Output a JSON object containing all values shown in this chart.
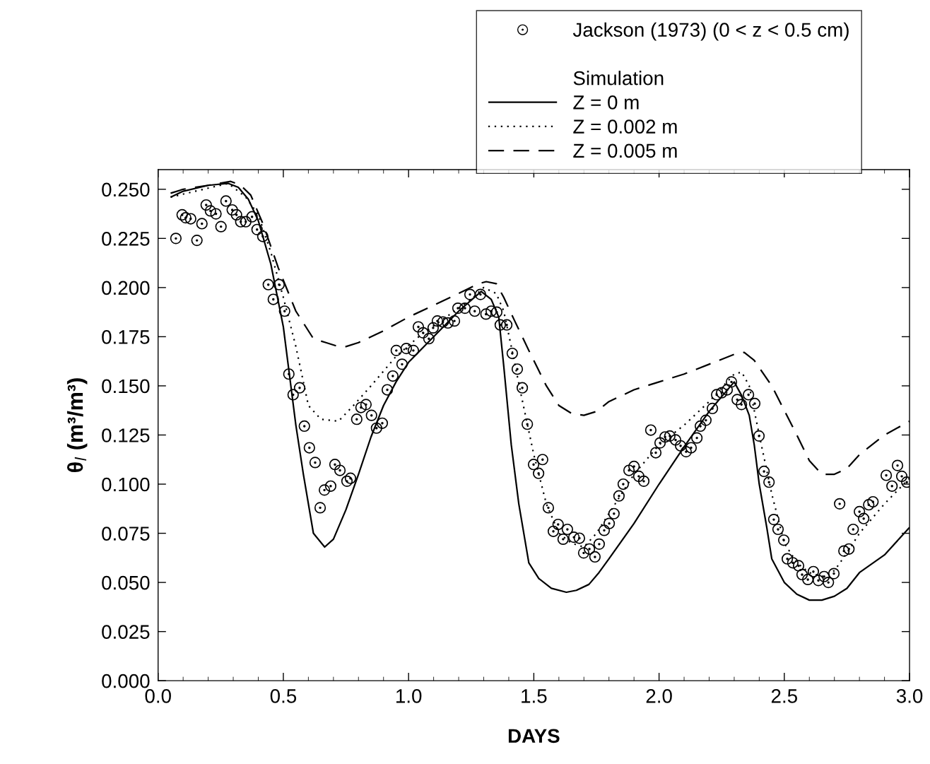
{
  "chart_data": {
    "type": "line",
    "xlabel": "DAYS",
    "ylabel": "θ$_{l}$ (m³/m³)",
    "legend_title": "Simulation",
    "legend": "top right",
    "grid": false,
    "xlim": [
      0,
      3.0
    ],
    "xticks": [
      {
        "value": 0,
        "label": "0.0"
      },
      {
        "value": 0.5,
        "label": "0.5"
      },
      {
        "value": 1.0,
        "label": "1.0"
      },
      {
        "value": 1.5,
        "label": "1.5"
      },
      {
        "value": 2.0,
        "label": "2.0"
      },
      {
        "value": 2.5,
        "label": "2.5"
      },
      {
        "value": 3.0,
        "label": "3.0"
      }
    ],
    "ylim": [
      0,
      0.26
    ],
    "yticks": [
      {
        "value": 0,
        "label": "0.000"
      },
      {
        "value": 0.025,
        "label": "0.025"
      },
      {
        "value": 0.05,
        "label": "0.050"
      },
      {
        "value": 0.075,
        "label": "0.075"
      },
      {
        "value": 0.1,
        "label": "0.100"
      },
      {
        "value": 0.125,
        "label": "0.125"
      },
      {
        "value": 0.15,
        "label": "0.150"
      },
      {
        "value": 0.175,
        "label": "0.175"
      },
      {
        "value": 0.2,
        "label": "0.200"
      },
      {
        "value": 0.225,
        "label": "0.225"
      },
      {
        "value": 0.25,
        "label": "0.250"
      }
    ],
    "series": [
      {
        "name": "Jackson (1973) (0 < z < 0.5 cm)",
        "type": "scatter",
        "marker": "circle",
        "color": "#000000",
        "x": [
          0.071,
          0.096,
          0.11,
          0.13,
          0.155,
          0.175,
          0.192,
          0.209,
          0.231,
          0.251,
          0.271,
          0.296,
          0.313,
          0.33,
          0.35,
          0.375,
          0.395,
          0.418,
          0.44,
          0.46,
          0.483,
          0.505,
          0.522,
          0.539,
          0.565,
          0.584,
          0.604,
          0.627,
          0.647,
          0.664,
          0.689,
          0.706,
          0.726,
          0.754,
          0.768,
          0.793,
          0.81,
          0.83,
          0.852,
          0.872,
          0.895,
          0.915,
          0.937,
          0.951,
          0.974,
          0.991,
          1.019,
          1.039,
          1.058,
          1.081,
          1.098,
          1.115,
          1.137,
          1.157,
          1.183,
          1.197,
          1.225,
          1.245,
          1.264,
          1.287,
          1.309,
          1.33,
          1.352,
          1.366,
          1.392,
          1.414,
          1.434,
          1.454,
          1.474,
          1.499,
          1.519,
          1.535,
          1.558,
          1.578,
          1.597,
          1.617,
          1.634,
          1.66,
          1.682,
          1.699,
          1.722,
          1.744,
          1.761,
          1.781,
          1.801,
          1.82,
          1.84,
          1.857,
          1.88,
          1.9,
          1.919,
          1.939,
          1.967,
          1.987,
          2.004,
          2.024,
          2.043,
          2.066,
          2.086,
          2.108,
          2.128,
          2.151,
          2.165,
          2.187,
          2.213,
          2.23,
          2.25,
          2.272,
          2.289,
          2.312,
          2.329,
          2.357,
          2.382,
          2.399,
          2.419,
          2.439,
          2.458,
          2.475,
          2.498,
          2.512,
          2.534,
          2.557,
          2.571,
          2.594,
          2.616,
          2.636,
          2.659,
          2.676,
          2.698,
          2.721,
          2.738,
          2.758,
          2.775,
          2.8,
          2.817,
          2.837,
          2.854,
          2.907,
          2.93,
          2.952,
          2.969,
          2.989
        ],
        "values": [
          0.225,
          0.237,
          0.2355,
          0.235,
          0.224,
          0.2325,
          0.242,
          0.239,
          0.2375,
          0.231,
          0.244,
          0.2395,
          0.237,
          0.2335,
          0.2335,
          0.236,
          0.2295,
          0.226,
          0.2015,
          0.194,
          0.2015,
          0.188,
          0.156,
          0.1455,
          0.149,
          0.1295,
          0.1185,
          0.111,
          0.088,
          0.097,
          0.099,
          0.11,
          0.107,
          0.1015,
          0.103,
          0.133,
          0.139,
          0.1405,
          0.135,
          0.1285,
          0.131,
          0.148,
          0.155,
          0.168,
          0.161,
          0.169,
          0.168,
          0.18,
          0.177,
          0.174,
          0.1795,
          0.183,
          0.1825,
          0.182,
          0.183,
          0.1895,
          0.1895,
          0.1965,
          0.188,
          0.1965,
          0.1865,
          0.188,
          0.1875,
          0.181,
          0.181,
          0.1665,
          0.1585,
          0.149,
          0.1305,
          0.11,
          0.1055,
          0.1125,
          0.088,
          0.076,
          0.0795,
          0.072,
          0.077,
          0.073,
          0.0725,
          0.065,
          0.067,
          0.063,
          0.0695,
          0.0765,
          0.08,
          0.085,
          0.094,
          0.1,
          0.107,
          0.109,
          0.104,
          0.1015,
          0.1275,
          0.116,
          0.121,
          0.124,
          0.1245,
          0.1225,
          0.1195,
          0.1165,
          0.1185,
          0.1235,
          0.1295,
          0.1325,
          0.1385,
          0.1455,
          0.1465,
          0.148,
          0.152,
          0.143,
          0.1405,
          0.1455,
          0.141,
          0.1245,
          0.1065,
          0.101,
          0.082,
          0.077,
          0.0715,
          0.062,
          0.06,
          0.0585,
          0.054,
          0.0515,
          0.0555,
          0.051,
          0.053,
          0.05,
          0.0545,
          0.09,
          0.066,
          0.067,
          0.077,
          0.086,
          0.0825,
          0.0895,
          0.091,
          0.1045,
          0.099,
          0.1095,
          0.104,
          0.101
        ]
      },
      {
        "name": "Z = 0 m",
        "line_style": "solid",
        "color": "#000000",
        "x": [
          0.05,
          0.1,
          0.2,
          0.28,
          0.32,
          0.36,
          0.4,
          0.45,
          0.5,
          0.55,
          0.58,
          0.62,
          0.665,
          0.7,
          0.75,
          0.8,
          0.85,
          0.9,
          0.95,
          1.0,
          1.1,
          1.2,
          1.29,
          1.33,
          1.36,
          1.38,
          1.41,
          1.44,
          1.48,
          1.52,
          1.57,
          1.63,
          1.67,
          1.72,
          1.76,
          1.8,
          1.9,
          2.0,
          2.1,
          2.2,
          2.3,
          2.33,
          2.36,
          2.38,
          2.4,
          2.43,
          2.45,
          2.5,
          2.55,
          2.6,
          2.65,
          2.7,
          2.75,
          2.8,
          2.9,
          3.0
        ],
        "values": [
          0.246,
          0.249,
          0.252,
          0.253,
          0.251,
          0.245,
          0.234,
          0.212,
          0.18,
          0.13,
          0.105,
          0.075,
          0.068,
          0.072,
          0.087,
          0.105,
          0.124,
          0.14,
          0.152,
          0.162,
          0.175,
          0.188,
          0.198,
          0.194,
          0.185,
          0.16,
          0.12,
          0.09,
          0.06,
          0.052,
          0.047,
          0.045,
          0.046,
          0.049,
          0.055,
          0.062,
          0.08,
          0.1,
          0.119,
          0.137,
          0.152,
          0.145,
          0.135,
          0.12,
          0.1,
          0.078,
          0.062,
          0.05,
          0.044,
          0.041,
          0.041,
          0.043,
          0.047,
          0.055,
          0.064,
          0.078
        ]
      },
      {
        "name": "Z = 0.002 m",
        "line_style": "dotted",
        "color": "#000000",
        "x": [
          0.05,
          0.28,
          0.35,
          0.4,
          0.45,
          0.5,
          0.55,
          0.6,
          0.65,
          0.72,
          0.78,
          0.85,
          0.95,
          1.05,
          1.15,
          1.25,
          1.3,
          1.35,
          1.38,
          1.41,
          1.45,
          1.5,
          1.55,
          1.6,
          1.65,
          1.7,
          1.75,
          1.8,
          1.9,
          2.0,
          2.1,
          2.2,
          2.3,
          2.33,
          2.36,
          2.4,
          2.45,
          2.5,
          2.55,
          2.6,
          2.65,
          2.7,
          2.75,
          2.8,
          2.9,
          3.0
        ],
        "values": [
          0.246,
          0.253,
          0.246,
          0.237,
          0.218,
          0.195,
          0.17,
          0.14,
          0.133,
          0.132,
          0.14,
          0.15,
          0.165,
          0.176,
          0.185,
          0.194,
          0.2,
          0.197,
          0.188,
          0.17,
          0.145,
          0.115,
          0.09,
          0.075,
          0.07,
          0.068,
          0.075,
          0.085,
          0.105,
          0.12,
          0.13,
          0.142,
          0.156,
          0.157,
          0.15,
          0.125,
          0.095,
          0.07,
          0.06,
          0.055,
          0.053,
          0.056,
          0.065,
          0.075,
          0.09,
          0.103
        ]
      },
      {
        "name": "Z = 0.005 m",
        "line_style": "dashed",
        "color": "#000000",
        "x": [
          0.05,
          0.1,
          0.2,
          0.29,
          0.33,
          0.37,
          0.42,
          0.48,
          0.55,
          0.62,
          0.67,
          0.72,
          0.75,
          0.8,
          0.9,
          1.0,
          1.1,
          1.2,
          1.28,
          1.31,
          1.35,
          1.38,
          1.42,
          1.48,
          1.55,
          1.6,
          1.65,
          1.7,
          1.75,
          1.8,
          1.9,
          2.0,
          2.1,
          2.2,
          2.3,
          2.34,
          2.38,
          2.45,
          2.55,
          2.6,
          2.65,
          2.7,
          2.75,
          2.8,
          2.9,
          3.0
        ],
        "values": [
          0.248,
          0.25,
          0.252,
          0.254,
          0.252,
          0.247,
          0.232,
          0.21,
          0.188,
          0.174,
          0.172,
          0.17,
          0.17,
          0.172,
          0.178,
          0.185,
          0.191,
          0.197,
          0.202,
          0.203,
          0.202,
          0.195,
          0.184,
          0.168,
          0.15,
          0.14,
          0.136,
          0.135,
          0.137,
          0.142,
          0.148,
          0.152,
          0.156,
          0.161,
          0.166,
          0.167,
          0.163,
          0.15,
          0.125,
          0.112,
          0.105,
          0.105,
          0.108,
          0.115,
          0.125,
          0.132
        ]
      }
    ]
  }
}
